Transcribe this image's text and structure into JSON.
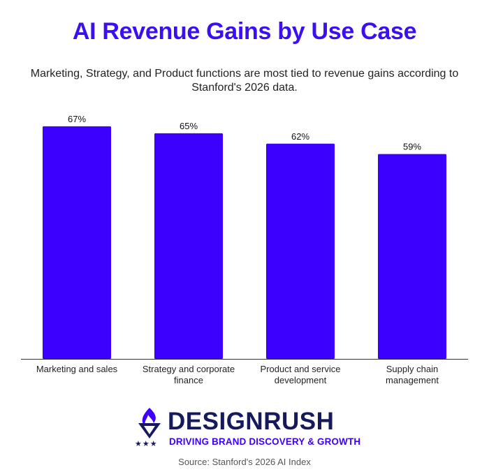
{
  "title": "AI Revenue Gains by Use Case",
  "subtitle": "Marketing, Strategy, and Product functions are most tied to revenue gains according to Stanford's 2026 data.",
  "colors": {
    "title": "#3b0ff0",
    "bar": "#3c00ff",
    "brand_dark": "#16195c",
    "brand_accent": "#3c00ff",
    "axis": "#333333"
  },
  "chart_data": {
    "type": "bar",
    "categories": [
      [
        "Marketing and sales"
      ],
      [
        "Strategy and corporate",
        "finance"
      ],
      [
        "Product and service",
        "development"
      ],
      [
        "Supply chain",
        "management"
      ]
    ],
    "values": [
      67,
      65,
      62,
      59
    ],
    "value_labels": [
      "67%",
      "65%",
      "62%",
      "59%"
    ],
    "ylim": [
      0,
      70
    ],
    "grid": false,
    "legend": "none"
  },
  "logo": {
    "name": "DESIGNRUSH",
    "tagline": "DRIVING BRAND DISCOVERY & GROWTH",
    "stars": "★★★",
    "icon": "torch-icon"
  },
  "source": "Source: Stanford's 2026 AI Index"
}
